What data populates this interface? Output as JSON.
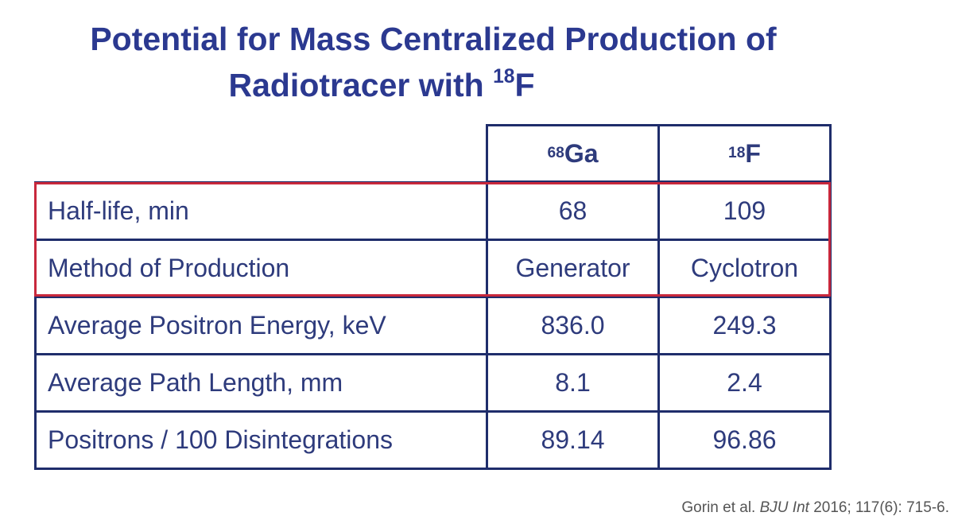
{
  "header": {
    "title": {
      "line1": "Potential for Mass Centralized Production of",
      "line2": "Radiotracer with",
      "sup": "18",
      "element": "F"
    }
  },
  "table": {
    "columns": [
      {
        "sup": "68",
        "element": "Ga"
      },
      {
        "sup": "18",
        "element": "F"
      }
    ],
    "rows": [
      [
        "Half-life, min",
        "68",
        "109"
      ],
      [
        "Method of Production",
        "Generator",
        "Cyclotron"
      ],
      [
        "Average Positron Energy, keV",
        "836.0",
        "249.3"
      ],
      [
        "Average Path Length, mm",
        "8.1",
        "2.4"
      ],
      [
        "Positrons / 100 Disintegrations",
        "89.14",
        "96.86"
      ]
    ]
  },
  "citation": {
    "authors": "Gorin et al.",
    "journal": "BJU Int",
    "details": "2016; 117(6): 715-6."
  }
}
